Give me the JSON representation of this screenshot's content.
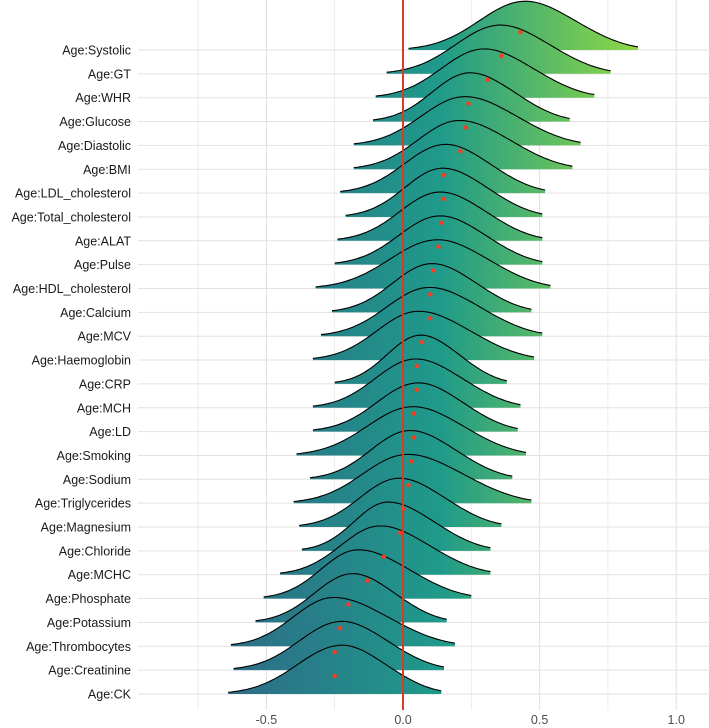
{
  "chart_data": {
    "type": "ridgeline",
    "title": "",
    "xlabel": "",
    "ylabel": "",
    "xlim": [
      -0.97,
      1.12
    ],
    "x_ticks": [
      -0.5,
      0.0,
      0.5,
      1.0
    ],
    "x_tick_labels": [
      "-0.5",
      "0.0",
      "0.5",
      "1.0"
    ],
    "reference_line_x": 0,
    "grid": true,
    "legend": "none",
    "categories": [
      "Age:Systolic",
      "Age:GT",
      "Age:WHR",
      "Age:Glucose",
      "Age:Diastolic",
      "Age:BMI",
      "Age:LDL_cholesterol",
      "Age:Total_cholesterol",
      "Age:ALAT",
      "Age:Pulse",
      "Age:HDL_cholesterol",
      "Age:Calcium",
      "Age:MCV",
      "Age:Haemoglobin",
      "Age:CRP",
      "Age:MCH",
      "Age:LD",
      "Age:Smoking",
      "Age:Sodium",
      "Age:Triglycerides",
      "Age:Magnesium",
      "Age:Chloride",
      "Age:MCHC",
      "Age:Phosphate",
      "Age:Potassium",
      "Age:Thrombocytes",
      "Age:Creatinine",
      "Age:CK"
    ],
    "means": [
      0.43,
      0.36,
      0.31,
      0.24,
      0.23,
      0.21,
      0.15,
      0.15,
      0.14,
      0.13,
      0.11,
      0.1,
      0.1,
      0.07,
      0.05,
      0.05,
      0.04,
      0.04,
      0.03,
      0.02,
      0.0,
      -0.01,
      -0.07,
      -0.13,
      -0.2,
      -0.23,
      -0.25,
      -0.25
    ],
    "density_range": [
      [
        0.02,
        0.86
      ],
      [
        -0.06,
        0.76
      ],
      [
        -0.1,
        0.7
      ],
      [
        -0.11,
        0.61
      ],
      [
        -0.18,
        0.65
      ],
      [
        -0.18,
        0.62
      ],
      [
        -0.23,
        0.52
      ],
      [
        -0.21,
        0.51
      ],
      [
        -0.24,
        0.51
      ],
      [
        -0.25,
        0.51
      ],
      [
        -0.32,
        0.54
      ],
      [
        -0.26,
        0.47
      ],
      [
        -0.3,
        0.51
      ],
      [
        -0.33,
        0.48
      ],
      [
        -0.25,
        0.38
      ],
      [
        -0.33,
        0.43
      ],
      [
        -0.33,
        0.42
      ],
      [
        -0.39,
        0.45
      ],
      [
        -0.34,
        0.4
      ],
      [
        -0.4,
        0.47
      ],
      [
        -0.38,
        0.36
      ],
      [
        -0.37,
        0.32
      ],
      [
        -0.45,
        0.32
      ],
      [
        -0.51,
        0.25
      ],
      [
        -0.54,
        0.16
      ],
      [
        -0.63,
        0.19
      ],
      [
        -0.62,
        0.15
      ],
      [
        -0.64,
        0.14
      ]
    ],
    "peak_location": [
      0.44,
      0.35,
      0.29,
      0.24,
      0.22,
      0.2,
      0.15,
      0.14,
      0.13,
      0.13,
      0.12,
      0.1,
      0.09,
      0.05,
      0.06,
      0.04,
      0.05,
      0.03,
      0.02,
      0.01,
      -0.02,
      -0.06,
      -0.09,
      -0.17,
      -0.19,
      -0.26,
      -0.23,
      -0.23
    ],
    "colors": {
      "gradient_low": "#3d3b85",
      "gradient_mid": "#1f9a8a",
      "gradient_high": "#8fd744",
      "reference_line": "#d93b26",
      "mean_marker": "#ff3b1f",
      "outline": "#000000",
      "grid": "#e2e2e2"
    }
  }
}
